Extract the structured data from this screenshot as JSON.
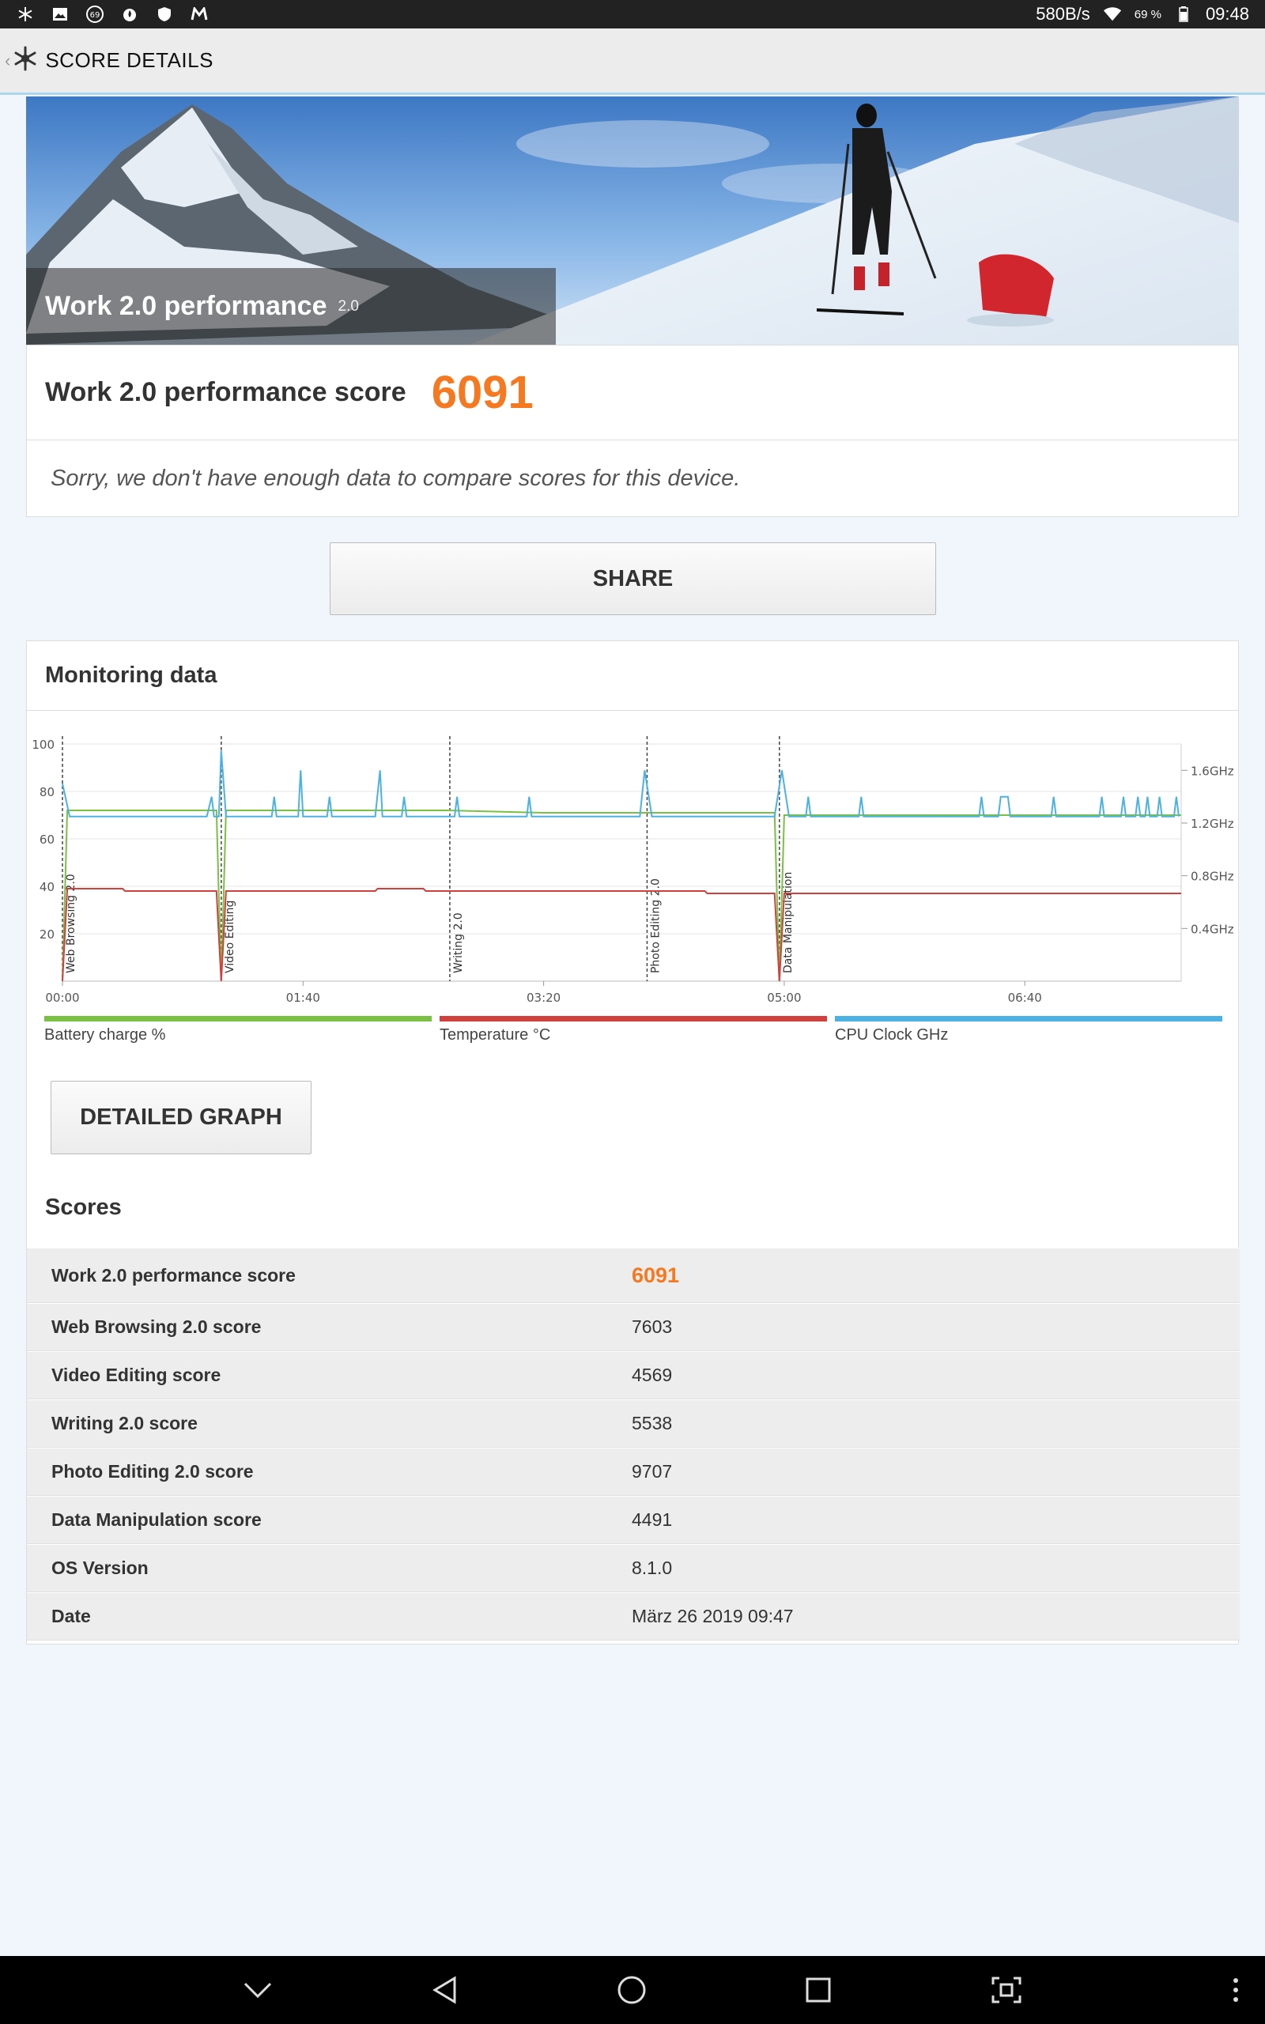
{
  "status_bar": {
    "icons": [
      "snowflake-icon",
      "image-icon",
      "notification-69-icon",
      "flame-icon",
      "shield-icon",
      "m-app-icon"
    ],
    "notification_badge": "69",
    "net_speed": "580B/s",
    "battery_percent": "69 %",
    "time": "09:48"
  },
  "app_bar": {
    "title": "SCORE DETAILS"
  },
  "hero": {
    "title": "Work 2.0 performance",
    "version": "2.0"
  },
  "score_card": {
    "label": "Work 2.0 performance score",
    "value": "6091",
    "compare_message": "Sorry, we don't have enough data to compare scores for this device."
  },
  "share_label": "SHARE",
  "monitoring": {
    "title": "Monitoring data",
    "legend": [
      {
        "label": "Battery charge %",
        "color": "#7ac143"
      },
      {
        "label": "Temperature °C",
        "color": "#d0413d"
      },
      {
        "label": "CPU Clock GHz",
        "color": "#4bb2e3"
      }
    ],
    "detail_button": "DETAILED GRAPH"
  },
  "chart_data": {
    "type": "line",
    "x_ticks": [
      "00:00",
      "01:40",
      "03:20",
      "05:00",
      "06:40"
    ],
    "y_left_ticks": [
      "100",
      "80",
      "60",
      "40",
      "20"
    ],
    "y_right_ticks": [
      "1.6GHz",
      "1.2GHz",
      "0.8GHz",
      "0.4GHz"
    ],
    "ylim_left": [
      0,
      100
    ],
    "ylim_right": [
      0,
      1.8
    ],
    "xlim_seconds": [
      0,
      465
    ],
    "phase_markers": [
      {
        "label": "Web Browsing 2.0",
        "t": 0
      },
      {
        "label": "Video Editing",
        "t": 66
      },
      {
        "label": "Writing 2.0",
        "t": 161
      },
      {
        "label": "Photo Editing 2.0",
        "t": 243
      },
      {
        "label": "Data Manipulation",
        "t": 298
      }
    ],
    "series": [
      {
        "name": "Battery charge %",
        "color": "#7ac143",
        "axis": "left",
        "points": [
          [
            0,
            0
          ],
          [
            2,
            72
          ],
          [
            64,
            72
          ],
          [
            66,
            0
          ],
          [
            68,
            72
          ],
          [
            160,
            72
          ],
          [
            200,
            71
          ],
          [
            243,
            71
          ],
          [
            296,
            71
          ],
          [
            298,
            0
          ],
          [
            300,
            70
          ],
          [
            370,
            70
          ],
          [
            465,
            70
          ]
        ]
      },
      {
        "name": "Temperature °C",
        "color": "#d0413d",
        "axis": "left",
        "points": [
          [
            0,
            0
          ],
          [
            2,
            39
          ],
          [
            25,
            39
          ],
          [
            26,
            38
          ],
          [
            64,
            38
          ],
          [
            66,
            0
          ],
          [
            68,
            38
          ],
          [
            130,
            38
          ],
          [
            131,
            39
          ],
          [
            150,
            39
          ],
          [
            151,
            38
          ],
          [
            200,
            38
          ],
          [
            267,
            38
          ],
          [
            268,
            37
          ],
          [
            296,
            37
          ],
          [
            298,
            0
          ],
          [
            300,
            37
          ],
          [
            465,
            37
          ]
        ]
      },
      {
        "name": "CPU Clock GHz",
        "color": "#4bb2e3",
        "axis": "right",
        "points": [
          [
            0,
            1.5
          ],
          [
            3,
            1.25
          ],
          [
            60,
            1.25
          ],
          [
            62,
            1.4
          ],
          [
            63,
            1.25
          ],
          [
            65,
            1.25
          ],
          [
            66,
            1.75
          ],
          [
            68,
            1.25
          ],
          [
            87,
            1.25
          ],
          [
            88,
            1.4
          ],
          [
            89,
            1.25
          ],
          [
            98,
            1.25
          ],
          [
            99,
            1.6
          ],
          [
            100,
            1.25
          ],
          [
            110,
            1.25
          ],
          [
            111,
            1.4
          ],
          [
            112,
            1.25
          ],
          [
            130,
            1.25
          ],
          [
            132,
            1.6
          ],
          [
            133,
            1.25
          ],
          [
            141,
            1.25
          ],
          [
            142,
            1.4
          ],
          [
            143,
            1.25
          ],
          [
            163,
            1.25
          ],
          [
            164,
            1.4
          ],
          [
            165,
            1.25
          ],
          [
            193,
            1.25
          ],
          [
            194,
            1.4
          ],
          [
            195,
            1.25
          ],
          [
            240,
            1.25
          ],
          [
            242,
            1.6
          ],
          [
            245,
            1.25
          ],
          [
            296,
            1.25
          ],
          [
            299,
            1.6
          ],
          [
            302,
            1.25
          ],
          [
            309,
            1.25
          ],
          [
            310,
            1.4
          ],
          [
            311,
            1.25
          ],
          [
            331,
            1.25
          ],
          [
            332,
            1.4
          ],
          [
            333,
            1.25
          ],
          [
            381,
            1.25
          ],
          [
            382,
            1.4
          ],
          [
            383,
            1.25
          ],
          [
            389,
            1.25
          ],
          [
            390,
            1.4
          ],
          [
            393,
            1.4
          ],
          [
            394,
            1.25
          ],
          [
            411,
            1.25
          ],
          [
            412,
            1.4
          ],
          [
            413,
            1.25
          ],
          [
            431,
            1.25
          ],
          [
            432,
            1.4
          ],
          [
            433,
            1.25
          ],
          [
            440,
            1.25
          ],
          [
            441,
            1.4
          ],
          [
            442,
            1.25
          ],
          [
            446,
            1.25
          ],
          [
            447,
            1.4
          ],
          [
            448,
            1.25
          ],
          [
            450,
            1.25
          ],
          [
            451,
            1.4
          ],
          [
            452,
            1.25
          ],
          [
            455,
            1.25
          ],
          [
            456,
            1.4
          ],
          [
            457,
            1.25
          ],
          [
            462,
            1.25
          ],
          [
            463,
            1.4
          ],
          [
            464,
            1.25
          ]
        ]
      }
    ]
  },
  "scores": {
    "title": "Scores",
    "rows": [
      {
        "label": "Work 2.0 performance score",
        "value": "6091"
      },
      {
        "label": "Web Browsing 2.0 score",
        "value": "7603"
      },
      {
        "label": "Video Editing score",
        "value": "4569"
      },
      {
        "label": "Writing 2.0 score",
        "value": "5538"
      },
      {
        "label": "Photo Editing 2.0 score",
        "value": "9707"
      },
      {
        "label": "Data Manipulation score",
        "value": "4491"
      },
      {
        "label": "OS Version",
        "value": "8.1.0"
      },
      {
        "label": "Date",
        "value": "März 26 2019 09:47"
      }
    ]
  },
  "nav_bar": {
    "icons": [
      "chevron-down-icon",
      "back-icon",
      "home-icon",
      "recents-icon",
      "screenshot-icon",
      "more-icon"
    ]
  }
}
